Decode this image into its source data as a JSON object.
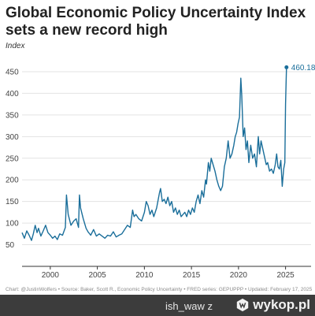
{
  "chart_data": {
    "type": "line",
    "title": "Global Economic Policy Uncertainty Index sets a new record high",
    "subtitle": "Index",
    "xlabel": "",
    "ylabel": "Index",
    "xlim": [
      1997,
      2025.2
    ],
    "ylim": [
      0,
      470
    ],
    "yticks": [
      0,
      50,
      100,
      150,
      200,
      250,
      300,
      350,
      400,
      450
    ],
    "xticks": [
      2000,
      2005,
      2010,
      2015,
      2020,
      2025
    ],
    "grid": true,
    "legend": "none",
    "end_label": "460.18",
    "color": "#1a6e9a",
    "series": [
      {
        "x": [
          1997.0,
          1997.25,
          1997.5,
          1997.75,
          1998.0,
          1998.2,
          1998.4,
          1998.6,
          1998.75,
          1999.0,
          1999.25,
          1999.5,
          1999.75,
          2000.0,
          2000.25,
          2000.5,
          2000.75,
          2001.0,
          2001.3,
          2001.6,
          2001.72,
          2001.9,
          2002.2,
          2002.5,
          2002.75,
          2003.0,
          2003.1,
          2003.22,
          2003.5,
          2003.8,
          2004.0,
          2004.3,
          2004.6,
          2004.9,
          2005.2,
          2005.5,
          2005.8,
          2006.1,
          2006.4,
          2006.7,
          2007.0,
          2007.3,
          2007.6,
          2007.9,
          2008.2,
          2008.5,
          2008.75,
          2008.9,
          2009.1,
          2009.4,
          2009.7,
          2010.0,
          2010.2,
          2010.4,
          2010.6,
          2010.8,
          2011.0,
          2011.3,
          2011.6,
          2011.72,
          2011.9,
          2012.1,
          2012.3,
          2012.5,
          2012.7,
          2012.9,
          2013.1,
          2013.3,
          2013.5,
          2013.7,
          2013.9,
          2014.1,
          2014.3,
          2014.5,
          2014.7,
          2014.9,
          2015.1,
          2015.3,
          2015.5,
          2015.7,
          2015.9,
          2016.1,
          2016.3,
          2016.5,
          2016.6,
          2016.8,
          2016.95,
          2017.1,
          2017.3,
          2017.5,
          2017.7,
          2017.9,
          2018.1,
          2018.3,
          2018.5,
          2018.7,
          2018.9,
          2019.1,
          2019.3,
          2019.5,
          2019.65,
          2019.8,
          2019.95,
          2020.1,
          2020.25,
          2020.35,
          2020.5,
          2020.65,
          2020.8,
          2020.95,
          2021.1,
          2021.3,
          2021.5,
          2021.7,
          2021.9,
          2022.1,
          2022.25,
          2022.4,
          2022.6,
          2022.8,
          2022.95,
          2023.1,
          2023.3,
          2023.5,
          2023.7,
          2023.9,
          2024.05,
          2024.2,
          2024.35,
          2024.5,
          2024.65,
          2024.8,
          2024.92,
          2025.0,
          2025.1
        ],
        "y": [
          78,
          65,
          82,
          72,
          60,
          75,
          95,
          78,
          88,
          70,
          82,
          95,
          78,
          72,
          65,
          70,
          62,
          75,
          72,
          90,
          165,
          120,
          95,
          105,
          110,
          90,
          165,
          135,
          110,
          88,
          80,
          72,
          85,
          70,
          75,
          70,
          65,
          72,
          70,
          80,
          68,
          72,
          75,
          85,
          95,
          90,
          130,
          115,
          120,
          110,
          105,
          125,
          150,
          140,
          120,
          130,
          115,
          135,
          170,
          180,
          150,
          155,
          145,
          160,
          140,
          150,
          125,
          135,
          120,
          130,
          115,
          120,
          125,
          115,
          130,
          120,
          135,
          125,
          150,
          165,
          145,
          175,
          160,
          200,
          190,
          240,
          220,
          250,
          235,
          220,
          200,
          185,
          175,
          185,
          230,
          250,
          290,
          250,
          260,
          280,
          300,
          310,
          330,
          345,
          435,
          395,
          300,
          320,
          270,
          290,
          240,
          280,
          250,
          260,
          230,
          300,
          260,
          290,
          270,
          250,
          235,
          240,
          220,
          225,
          215,
          235,
          260,
          230,
          225,
          245,
          185,
          225,
          240,
          375,
          460.18
        ]
      }
    ]
  },
  "footer": "Chart: @JustinWolfers • Source: Baker, Scott R., Economic Policy Uncertainty • FRED series: GEPUPPP • Updated: February 17, 2025",
  "watermark": {
    "user": "ish_waw",
    "user_suffix": "z",
    "site": "wykop.pl"
  }
}
